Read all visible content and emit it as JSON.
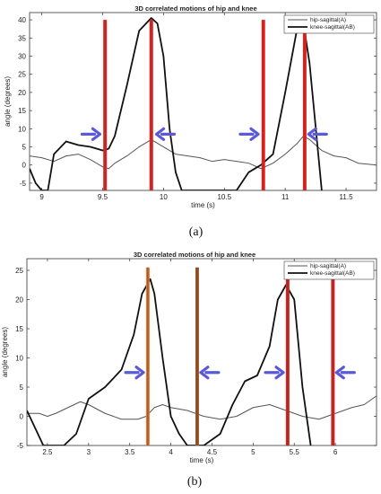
{
  "chart_data": [
    {
      "type": "line",
      "title": "3D correlated motions of hip and knee",
      "xlabel": "time (s)",
      "ylabel": "angle (degrees)",
      "caption": "(a)",
      "xlim": [
        8.9,
        11.75
      ],
      "ylim": [
        -7,
        42
      ],
      "xticks": [
        "9",
        "9.5",
        "10",
        "10.5",
        "11",
        "11.5"
      ],
      "xtick_values": [
        9,
        9.5,
        10,
        10.5,
        11,
        11.5
      ],
      "yticks": [
        "-5",
        "0",
        "5",
        "10",
        "15",
        "20",
        "25",
        "30",
        "35",
        "40"
      ],
      "ytick_values": [
        -5,
        0,
        5,
        10,
        15,
        20,
        25,
        30,
        35,
        40
      ],
      "legend_position": "top-right",
      "grid": false,
      "series": [
        {
          "name": "hip-sagittal(A)",
          "color": "#555555",
          "x": [
            8.9,
            9.0,
            9.1,
            9.2,
            9.3,
            9.4,
            9.5,
            9.55,
            9.6,
            9.7,
            9.8,
            9.9,
            10.0,
            10.1,
            10.2,
            10.3,
            10.4,
            10.5,
            10.6,
            10.7,
            10.8,
            10.9,
            11.0,
            11.1,
            11.15,
            11.2,
            11.3,
            11.4,
            11.5,
            11.6,
            11.75
          ],
          "y": [
            2.5,
            2.0,
            1.0,
            2.5,
            3.0,
            1.5,
            -0.5,
            -1.0,
            0.5,
            2.5,
            5.0,
            7.0,
            5.0,
            3.0,
            2.5,
            2.0,
            1.0,
            1.5,
            1.0,
            0.5,
            -1.0,
            0.5,
            3.0,
            6.0,
            8.0,
            7.0,
            4.0,
            2.5,
            2.0,
            0.5,
            0.0
          ]
        },
        {
          "name": "knee-sagittal(AB)",
          "color": "#111111",
          "x": [
            8.9,
            8.95,
            9.0,
            9.05,
            9.1,
            9.2,
            9.3,
            9.4,
            9.5,
            9.55,
            9.6,
            9.7,
            9.8,
            9.9,
            9.95,
            10.0,
            10.05,
            10.1,
            10.15,
            10.2,
            10.3,
            10.4,
            10.5,
            10.6,
            10.7,
            10.8,
            10.9,
            11.0,
            11.1,
            11.15,
            11.2,
            11.3
          ],
          "y": [
            -1,
            -5,
            -7,
            -7,
            3,
            6.5,
            5.5,
            5,
            4,
            4.5,
            8,
            22,
            37,
            40.5,
            39,
            30,
            10,
            -2,
            -7,
            -7,
            -7,
            -7,
            -7,
            -7,
            -2,
            0,
            3,
            20,
            38,
            39,
            28,
            -7
          ]
        }
      ],
      "markers": {
        "lines_x": [
          9.52,
          9.9,
          10.82,
          11.16
        ],
        "line_top": 40,
        "line_color": "#e62020",
        "line_center_color": "#8a3a2a",
        "arrows": [
          {
            "x": 9.5,
            "y": 8.5,
            "direction": "right"
          },
          {
            "x": 9.92,
            "y": 8.5,
            "direction": "left"
          },
          {
            "x": 10.8,
            "y": 8.5,
            "direction": "right"
          },
          {
            "x": 11.17,
            "y": 8.5,
            "direction": "left"
          }
        ],
        "arrow_color": "#5a5ad8"
      }
    },
    {
      "type": "line",
      "title": "3D correlated motions of hip and knee",
      "xlabel": "time (s)",
      "ylabel": "angle (degrees)",
      "caption": "(b)",
      "xlim": [
        2.25,
        6.5
      ],
      "ylim": [
        -5,
        27
      ],
      "xticks": [
        "2.5",
        "3",
        "3.5",
        "4",
        "4.5",
        "5",
        "5.5",
        "6"
      ],
      "xtick_values": [
        2.5,
        3,
        3.5,
        4,
        4.5,
        5,
        5.5,
        6
      ],
      "yticks": [
        "-5",
        "0",
        "5",
        "10",
        "15",
        "20",
        "25"
      ],
      "ytick_values": [
        -5,
        0,
        5,
        10,
        15,
        20,
        25
      ],
      "legend_position": "top-right",
      "grid": false,
      "series": [
        {
          "name": "hip-sagittal(A)",
          "color": "#555555",
          "x": [
            2.25,
            2.4,
            2.5,
            2.6,
            2.75,
            2.9,
            3.0,
            3.2,
            3.4,
            3.6,
            3.7,
            3.8,
            3.9,
            4.0,
            4.2,
            4.4,
            4.6,
            4.8,
            5.0,
            5.2,
            5.4,
            5.6,
            5.8,
            6.0,
            6.2,
            6.35,
            6.5
          ],
          "y": [
            0.5,
            0.5,
            0.0,
            0.5,
            1.5,
            2.5,
            2.0,
            0.5,
            -0.5,
            -0.5,
            0.0,
            1.5,
            2.0,
            1.5,
            1.0,
            0.0,
            -0.5,
            0.0,
            1.5,
            2.0,
            1.0,
            0.0,
            -0.5,
            0.5,
            1.5,
            2.0,
            3.5
          ]
        },
        {
          "name": "knee-sagittal(AB)",
          "color": "#111111",
          "x": [
            2.25,
            2.35,
            2.45,
            2.55,
            2.7,
            2.85,
            3.0,
            3.2,
            3.4,
            3.55,
            3.65,
            3.75,
            3.8,
            3.9,
            4.0,
            4.1,
            4.2,
            4.4,
            4.6,
            4.75,
            4.9,
            5.05,
            5.2,
            5.3,
            5.4,
            5.5,
            5.6,
            5.7
          ],
          "y": [
            1,
            -2,
            -5,
            -5,
            -5,
            -3,
            3,
            5,
            8,
            14,
            21,
            23.5,
            21,
            10,
            0,
            -3,
            -5,
            -5,
            -3,
            2,
            6,
            7,
            12,
            20,
            22.5,
            20,
            5,
            -5
          ]
        }
      ],
      "markers": {
        "lines_x": [
          3.72,
          4.32,
          5.42,
          5.97
        ],
        "line_top": 25.5,
        "line_colors": [
          "#e67a30",
          "#a05a2a",
          "#e62020",
          "#e62020"
        ],
        "line_center_color": "#6a3a2a",
        "arrows": [
          {
            "x": 3.7,
            "y": 7.5,
            "direction": "right"
          },
          {
            "x": 4.33,
            "y": 7.5,
            "direction": "left"
          },
          {
            "x": 5.4,
            "y": 7.5,
            "direction": "right"
          },
          {
            "x": 5.98,
            "y": 7.5,
            "direction": "left"
          }
        ],
        "arrow_color": "#5a5ad8"
      }
    }
  ]
}
